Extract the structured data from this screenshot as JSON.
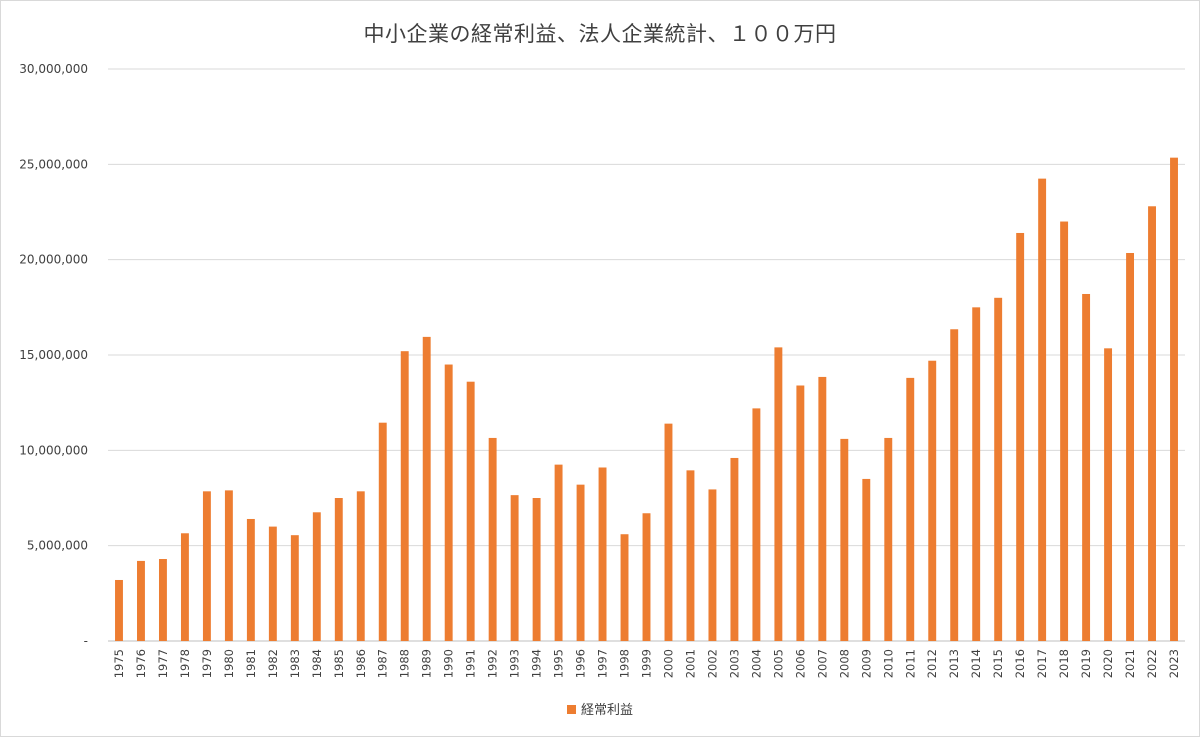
{
  "chart_data": {
    "type": "bar",
    "title": "中小企業の経常利益、法人企業統計、１００万円",
    "xlabel": "",
    "ylabel": "",
    "ylim": [
      0,
      30000000
    ],
    "yticks": [
      0,
      5000000,
      10000000,
      15000000,
      20000000,
      25000000,
      30000000
    ],
    "ytick_labels": [
      "-",
      "5,000,000",
      "10,000,000",
      "15,000,000",
      "20,000,000",
      "25,000,000",
      "30,000,000"
    ],
    "grid": true,
    "legend_position": "bottom",
    "bar_color": "#ed7d31",
    "categories": [
      "1975",
      "1976",
      "1977",
      "1978",
      "1979",
      "1980",
      "1981",
      "1982",
      "1983",
      "1984",
      "1985",
      "1986",
      "1987",
      "1988",
      "1989",
      "1990",
      "1991",
      "1992",
      "1993",
      "1994",
      "1995",
      "1996",
      "1997",
      "1998",
      "1999",
      "2000",
      "2001",
      "2002",
      "2003",
      "2004",
      "2005",
      "2006",
      "2007",
      "2008",
      "2009",
      "2010",
      "2011",
      "2012",
      "2013",
      "2014",
      "2015",
      "2016",
      "2017",
      "2018",
      "2019",
      "2020",
      "2021",
      "2022",
      "2023"
    ],
    "series": [
      {
        "name": "経常利益",
        "values": [
          3200000,
          4200000,
          4300000,
          5650000,
          7850000,
          7900000,
          6400000,
          6000000,
          5550000,
          6750000,
          7500000,
          7850000,
          11450000,
          15200000,
          15950000,
          14500000,
          13600000,
          10650000,
          7650000,
          7500000,
          9250000,
          8200000,
          9100000,
          5600000,
          6700000,
          11400000,
          8950000,
          7950000,
          9600000,
          12200000,
          15400000,
          13400000,
          13850000,
          10600000,
          8500000,
          10650000,
          13800000,
          14700000,
          16350000,
          17500000,
          18000000,
          21400000,
          24250000,
          22000000,
          18200000,
          15350000,
          20350000,
          22800000,
          25350000
        ]
      }
    ]
  }
}
